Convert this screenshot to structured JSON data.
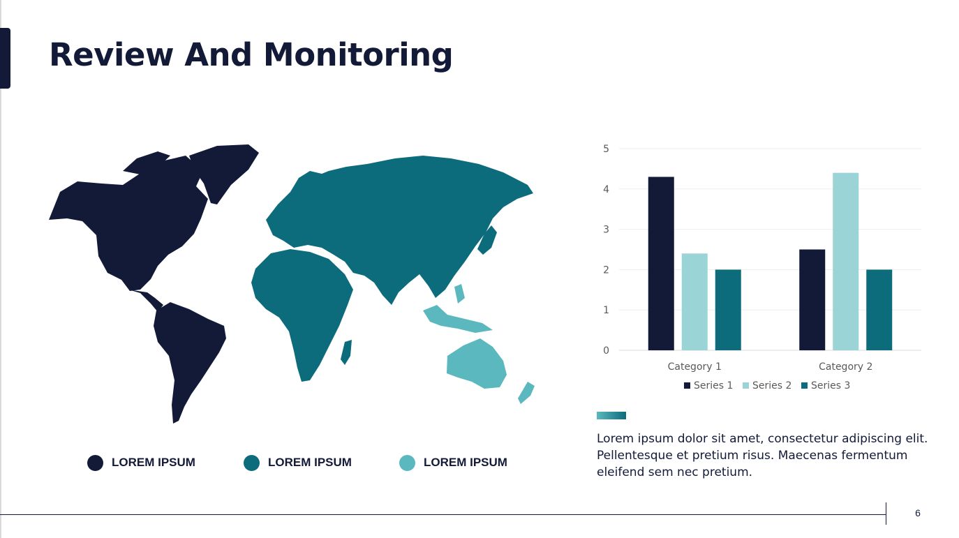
{
  "slide": {
    "title": "Review And Monitoring",
    "page_number": "6",
    "body_text": "Lorem ipsum dolor sit amet, consectetur adipiscing elit. Pellentesque et pretium risus. Maecenas fermentum eleifend sem nec pretium."
  },
  "colors": {
    "dark": "#121a38",
    "teal": "#0c6c7c",
    "light_teal": "#5bb8be",
    "pale": "#9ad4d6"
  },
  "map_legend": [
    {
      "label": "LOREM IPSUM",
      "color": "#121a38"
    },
    {
      "label": "LOREM IPSUM",
      "color": "#0c6c7c"
    },
    {
      "label": "LOREM IPSUM",
      "color": "#5bb8be"
    }
  ],
  "chart_data": {
    "type": "bar",
    "categories": [
      "Category 1",
      "Category 2"
    ],
    "series": [
      {
        "name": "Series 1",
        "values": [
          4.3,
          2.5
        ],
        "color": "#121a38"
      },
      {
        "name": "Series 2",
        "values": [
          2.4,
          4.4
        ],
        "color": "#9ad4d6"
      },
      {
        "name": "Series 3",
        "values": [
          2,
          2
        ],
        "color": "#0c6c7c"
      }
    ],
    "ylim": [
      0,
      5
    ],
    "yticks": [
      "0",
      "1",
      "2",
      "3",
      "4",
      "5"
    ],
    "grid": true,
    "legend": "bottom",
    "title": "",
    "xlabel": "",
    "ylabel": ""
  }
}
